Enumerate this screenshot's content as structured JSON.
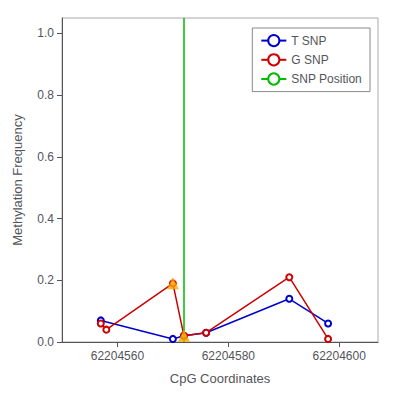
{
  "chart_data": {
    "type": "line",
    "xlabel": "CpG Coordinates",
    "ylabel": "Methylation Frequency",
    "xlim": [
      62204550,
      62204607
    ],
    "xticks": [
      62204560,
      62204580,
      62204600
    ],
    "ylim": [
      0.0,
      1.05
    ],
    "yticks": [
      {
        "value": 0.0,
        "label": "0.0"
      },
      0.2,
      0.4,
      0.6,
      0.8,
      {
        "value": 1.0,
        "label": "1.0"
      }
    ],
    "grid": false,
    "legend": "upper right",
    "series": [
      {
        "name": "T SNP",
        "type": "line",
        "color": "#0000cc",
        "marker": "open circle",
        "x": [
          62204557,
          62204570,
          62204572,
          62204576,
          62204591,
          62204598
        ],
        "values": [
          0.07,
          0.01,
          0.02,
          0.03,
          0.14,
          0.06
        ]
      },
      {
        "name": "G SNP",
        "type": "line",
        "color": "#cc0000",
        "marker": "open circle",
        "x": [
          62204557,
          62204558,
          62204570,
          62204572,
          62204576,
          62204591,
          62204598
        ],
        "values": [
          0.06,
          0.04,
          0.19,
          0.02,
          0.03,
          0.21,
          0.01
        ]
      },
      {
        "name": "SNP Position",
        "type": "vline",
        "color": "#00bb00",
        "x": [
          62204572
        ]
      },
      {
        "type": "scatter",
        "color": "#ffa500",
        "marker": "triangle",
        "x": [
          62204570,
          62204572
        ],
        "values": [
          0.19,
          0.02
        ]
      }
    ]
  }
}
